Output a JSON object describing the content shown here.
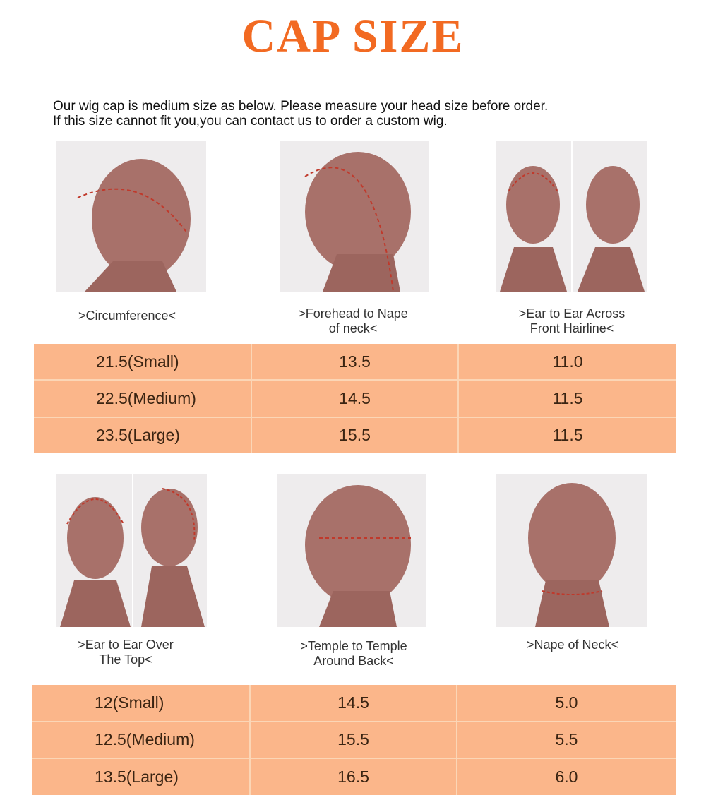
{
  "title": "CAP SIZE",
  "intro": [
    "Our wig cap is medium size as below. Please measure your head size before order.",
    "If this size cannot fit you,you can contact us to order a custom wig."
  ],
  "colors": {
    "title": "#f26a22",
    "cell": "#fbb68a",
    "border": "#fbd6b6",
    "measure_line": "#c0392b"
  },
  "section1": {
    "labels": [
      ">Circumference<",
      ">Forehead to Nape\nof  neck<",
      ">Ear to Ear Across\nFront Hairline<"
    ],
    "rows": [
      [
        "21.5(Small)",
        "13.5",
        "11.0"
      ],
      [
        "22.5(Medium)",
        "14.5",
        "11.5"
      ],
      [
        "23.5(Large)",
        "15.5",
        "11.5"
      ]
    ]
  },
  "section2": {
    "labels": [
      ">Ear to Ear Over\nThe Top<",
      ">Temple to Temple\nAround Back<",
      ">Nape of Neck<"
    ],
    "rows": [
      [
        "12(Small)",
        "14.5",
        "5.0"
      ],
      [
        "12.5(Medium)",
        "15.5",
        "5.5"
      ],
      [
        "13.5(Large)",
        "16.5",
        "6.0"
      ]
    ]
  }
}
